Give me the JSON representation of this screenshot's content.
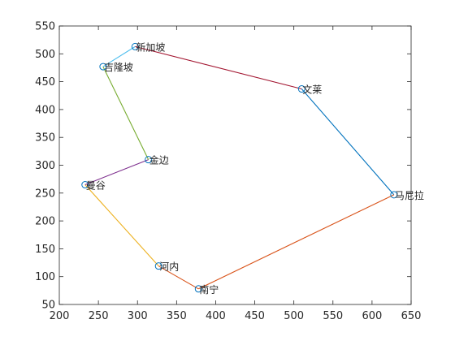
{
  "chart_data": {
    "type": "line",
    "title": "",
    "xlabel": "",
    "ylabel": "",
    "xlim": [
      200,
      650
    ],
    "ylim": [
      50,
      550
    ],
    "xticks": [
      200,
      250,
      300,
      350,
      400,
      450,
      500,
      550,
      600,
      650
    ],
    "yticks": [
      50,
      100,
      150,
      200,
      250,
      300,
      350,
      400,
      450,
      500,
      550
    ],
    "grid": false,
    "marker_color": "#0072BD",
    "cities": [
      {
        "name": "新加坡",
        "x": 297,
        "y": 513
      },
      {
        "name": "文莱",
        "x": 510,
        "y": 437
      },
      {
        "name": "马尼拉",
        "x": 628,
        "y": 247
      },
      {
        "name": "南宁",
        "x": 378,
        "y": 78
      },
      {
        "name": "河内",
        "x": 327,
        "y": 119
      },
      {
        "name": "曼谷",
        "x": 233,
        "y": 265
      },
      {
        "name": "金边",
        "x": 314,
        "y": 310
      },
      {
        "name": "吉隆坡",
        "x": 256,
        "y": 477
      }
    ],
    "route": [
      {
        "from": "新加坡",
        "to": "文莱",
        "color": "#A2142F"
      },
      {
        "from": "文莱",
        "to": "马尼拉",
        "color": "#0072BD"
      },
      {
        "from": "马尼拉",
        "to": "南宁",
        "color": "#D95319"
      },
      {
        "from": "南宁",
        "to": "河内",
        "color": "#D95319"
      },
      {
        "from": "河内",
        "to": "曼谷",
        "color": "#EDB120"
      },
      {
        "from": "曼谷",
        "to": "金边",
        "color": "#7E2F8E"
      },
      {
        "from": "金边",
        "to": "吉隆坡",
        "color": "#77AC30"
      },
      {
        "from": "吉隆坡",
        "to": "新加坡",
        "color": "#4DBEEE"
      }
    ]
  }
}
